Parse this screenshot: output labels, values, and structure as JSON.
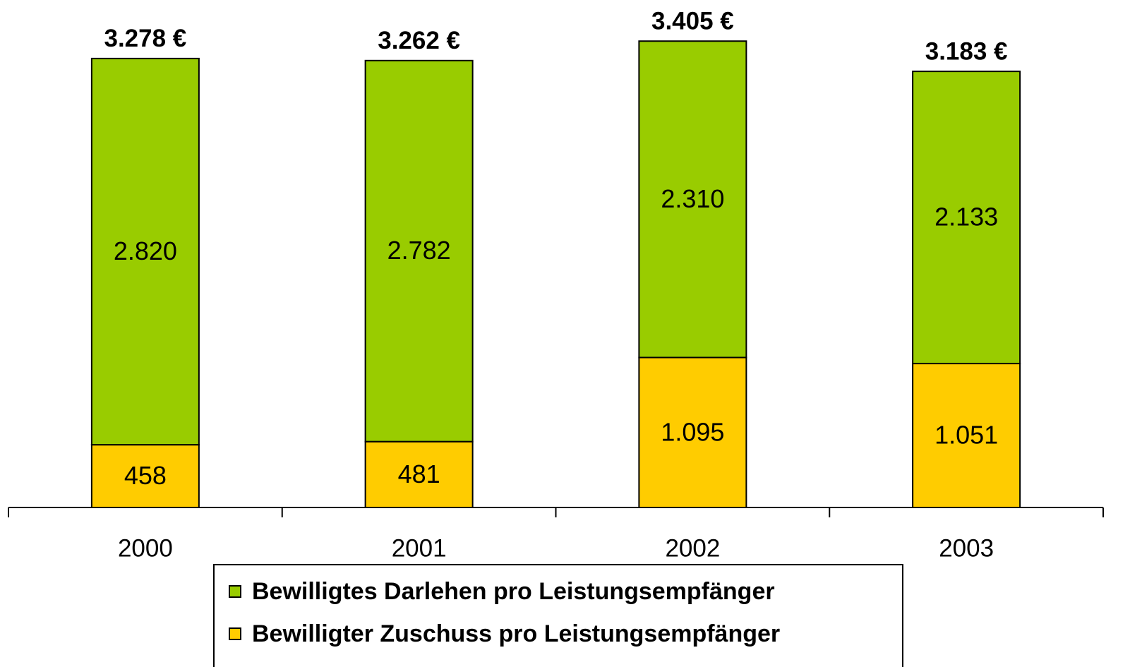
{
  "chart_data": {
    "type": "stacked_bar",
    "categories": [
      "2000",
      "2001",
      "2002",
      "2003"
    ],
    "series": [
      {
        "name": "Bewilligter Zuschuss pro Leistungsempfänger",
        "color": "#ffcc00",
        "values": [
          458,
          481,
          1095,
          1051
        ],
        "value_labels": [
          "458",
          "481",
          "1.095",
          "1.051"
        ]
      },
      {
        "name": "Bewilligtes Darlehen pro Leistungsempfänger",
        "color": "#99cc00",
        "values": [
          2820,
          2782,
          2310,
          2133
        ],
        "value_labels": [
          "2.820",
          "2.782",
          "2.310",
          "2.133"
        ]
      }
    ],
    "totals": {
      "values": [
        3278,
        3262,
        3405,
        3183
      ],
      "value_labels": [
        "3.278 €",
        "3.262 €",
        "3.405 €",
        "3.183 €"
      ]
    },
    "ylim": [
      0,
      3700
    ],
    "legend": "bottom"
  }
}
